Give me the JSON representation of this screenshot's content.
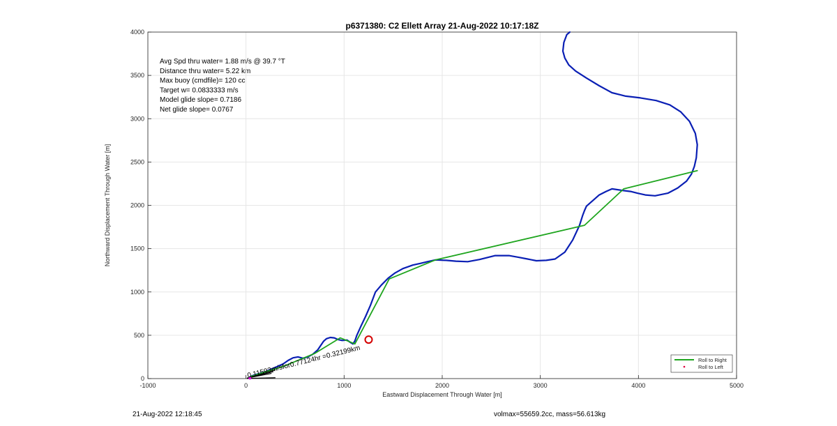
{
  "chart_data": {
    "type": "line",
    "title": "p6371380: C2 Ellett Array 21-Aug-2022 10:17:18Z",
    "xlabel": "Eastward Displacement Through Water [m]",
    "ylabel": "Northward Displacement Through Water [m]",
    "xlim": [
      -1000,
      5000
    ],
    "ylim": [
      0,
      4000
    ],
    "xticks": [
      -1000,
      0,
      1000,
      2000,
      3000,
      4000,
      5000
    ],
    "yticks": [
      0,
      500,
      1000,
      1500,
      2000,
      2500,
      3000,
      3500,
      4000
    ],
    "grid": true,
    "legend_position": "bottom-right",
    "legend": [
      {
        "label": "Roll to Right",
        "color": "#1ea51e",
        "style": "line"
      },
      {
        "label": "Roll to Left",
        "color": "#e0003c",
        "style": "dot"
      }
    ],
    "stats": [
      "Avg Spd thru water=  1.88 m/s @  39.7 °T",
      "Distance thru water=  5.22 km",
      "Max buoy (cmdfile)= 120 cc",
      "Target w= 0.0833333 m/s",
      "Model glide slope= 0.7186",
      "Net glide slope= 0.0767"
    ],
    "annotation": {
      "text": "0.11593m/sfor0.77124hr =0.32199km",
      "x": 20,
      "y": 10
    },
    "marker": {
      "x": 1250,
      "y": 450,
      "color": "#d40000"
    },
    "series": [
      {
        "color": "#0a1fb4",
        "x": [
          40,
          80,
          140,
          200,
          260,
          320,
          380,
          430,
          480,
          530,
          580,
          630,
          680,
          730,
          790,
          820,
          860,
          900,
          940,
          980,
          1030,
          1060,
          1090,
          1110,
          1130,
          1170,
          1220,
          1270,
          1320,
          1380,
          1450,
          1520,
          1600,
          1700,
          1780,
          1850,
          1930,
          2040,
          2140,
          2260,
          2380,
          2540,
          2680,
          2780,
          2870,
          2960,
          3060,
          3150,
          3250,
          3330,
          3400,
          3430,
          3450,
          3470,
          3530,
          3600,
          3670,
          3730,
          3790,
          3850,
          3920,
          3990,
          4070,
          4170,
          4300,
          4400,
          4490,
          4540,
          4570,
          4590,
          4600,
          4580,
          4520,
          4430,
          4320,
          4180,
          4020,
          3870,
          3730,
          3600,
          3470,
          3360,
          3290,
          3250,
          3230,
          3240,
          3270,
          3300
        ],
        "y": [
          20,
          40,
          60,
          80,
          110,
          140,
          170,
          210,
          240,
          250,
          235,
          250,
          280,
          330,
          430,
          460,
          475,
          470,
          450,
          440,
          445,
          420,
          400,
          435,
          500,
          600,
          720,
          850,
          1000,
          1080,
          1160,
          1220,
          1270,
          1310,
          1330,
          1350,
          1370,
          1365,
          1355,
          1350,
          1375,
          1420,
          1420,
          1400,
          1380,
          1360,
          1365,
          1380,
          1460,
          1600,
          1770,
          1880,
          1940,
          1990,
          2050,
          2120,
          2160,
          2190,
          2180,
          2170,
          2160,
          2140,
          2120,
          2110,
          2140,
          2200,
          2280,
          2360,
          2450,
          2550,
          2700,
          2830,
          2970,
          3080,
          3160,
          3210,
          3240,
          3260,
          3300,
          3380,
          3470,
          3550,
          3620,
          3700,
          3780,
          3880,
          3970,
          4000
        ]
      },
      {
        "color": "#1ea51e",
        "x": [
          40,
          200,
          380,
          700,
          960,
          1110,
          1460,
          1930,
          3450,
          3850,
          4600
        ],
        "y": [
          20,
          80,
          140,
          290,
          470,
          400,
          1150,
          1370,
          1770,
          2190,
          2400
        ]
      }
    ]
  },
  "footer": {
    "date": "21-Aug-2022 12:18:45",
    "summary": "volmax=55659.2cc, mass=56.613kg"
  }
}
